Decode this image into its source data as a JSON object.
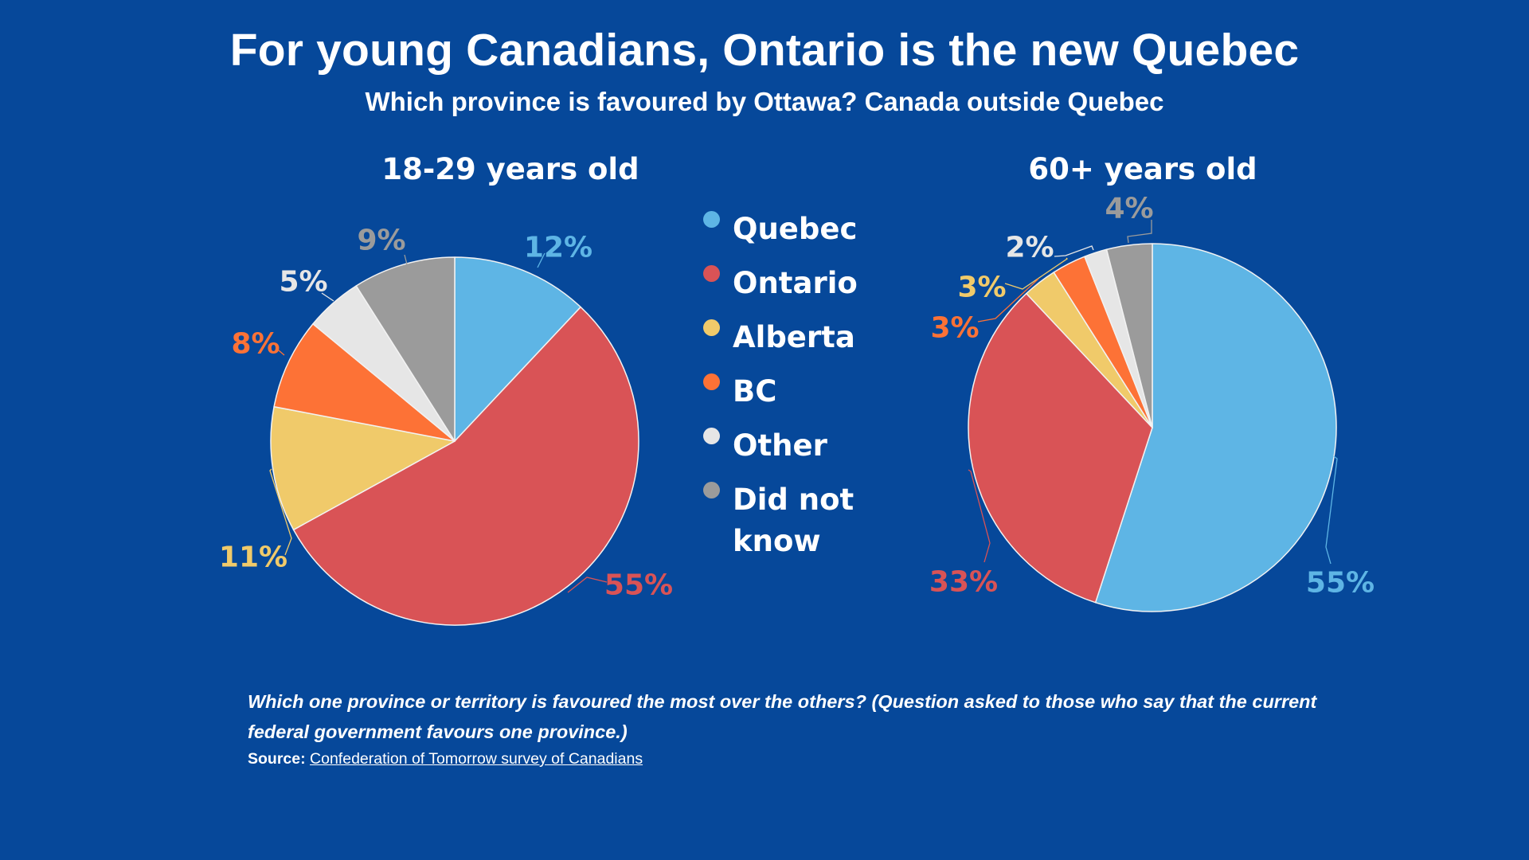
{
  "header": {
    "title": "For young Canadians, Ontario is the new Quebec",
    "subtitle": "Which province is favoured by Ottawa? Canada outside Quebec"
  },
  "legend": {
    "items": [
      {
        "label": "Quebec",
        "color": "#5eb5e5"
      },
      {
        "label": "Ontario",
        "color": "#d95356"
      },
      {
        "label": "Alberta",
        "color": "#f0ca6a"
      },
      {
        "label": "BC",
        "color": "#fd7236"
      },
      {
        "label": "Other",
        "color": "#e6e6e6"
      },
      {
        "label": "Did not know",
        "color": "#9b9b9b"
      }
    ]
  },
  "chart_data": [
    {
      "type": "pie",
      "title": "18-29 years old",
      "categories": [
        "Quebec",
        "Ontario",
        "Alberta",
        "BC",
        "Other",
        "Did not know"
      ],
      "values": [
        12,
        55,
        11,
        8,
        5,
        9
      ],
      "labels": [
        "12%",
        "55%",
        "11%",
        "8%",
        "5%",
        "9%"
      ],
      "start": "top",
      "direction": "clockwise",
      "legend_position": "right"
    },
    {
      "type": "pie",
      "title": "60+ years old",
      "categories": [
        "Quebec",
        "Ontario",
        "Alberta",
        "BC",
        "Other",
        "Did not know"
      ],
      "values": [
        55,
        33,
        3,
        3,
        2,
        4
      ],
      "labels": [
        "55%",
        "33%",
        "3%",
        "3%",
        "2%",
        "4%"
      ],
      "start": "top",
      "direction": "clockwise",
      "legend_position": "left"
    }
  ],
  "footer": {
    "note": "Which one province or territory is favoured the most over the others? (Question asked to those who say that the current federal government favours one province.)",
    "source_label": "Source:",
    "source_link_text": "Confederation of Tomorrow survey of Canadians"
  }
}
